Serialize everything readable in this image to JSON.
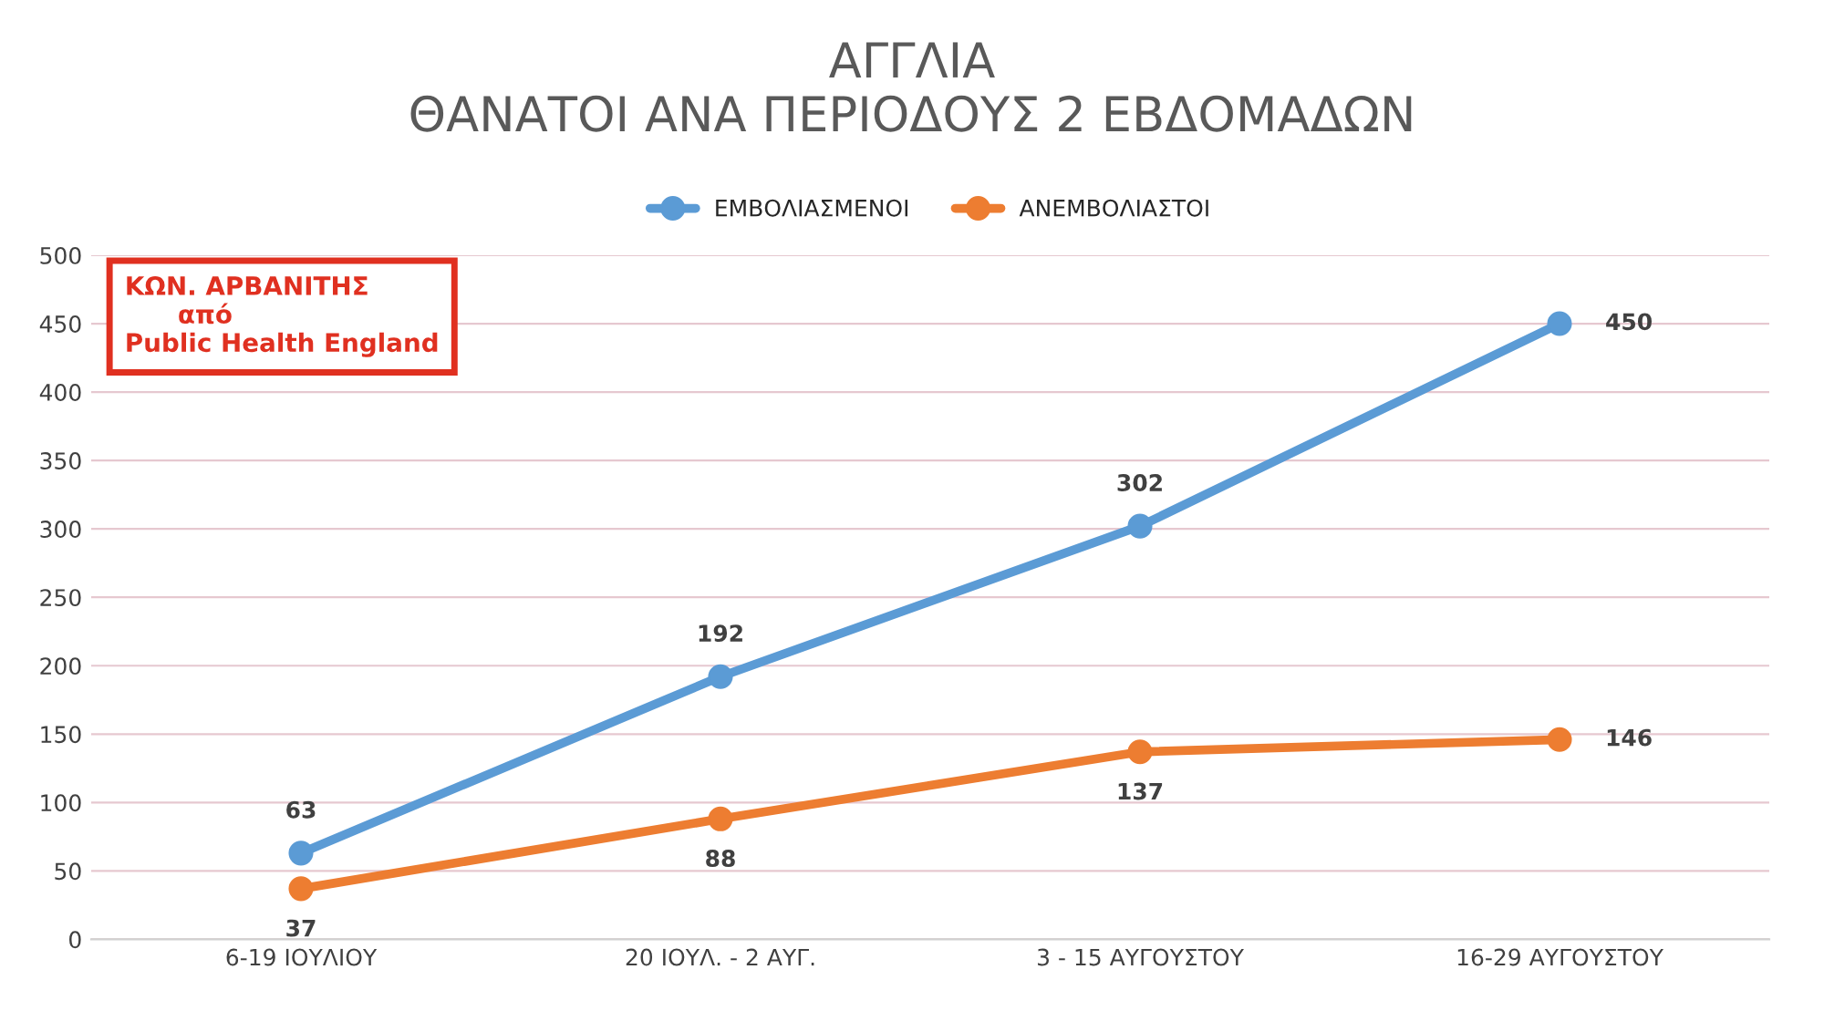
{
  "chart_data": {
    "type": "line",
    "title": "ΑΓΓΛΙΑ\nΘΑΝΑΤΟΙ ΑΝΑ ΠΕΡΙΟΔΟΥΣ 2 ΕΒΔΟΜΑΔΩΝ",
    "categories": [
      "6-19 ΙΟΥΛΙΟΥ",
      "20 ΙΟΥΛ. - 2 ΑΥΓ.",
      "3 - 15 ΑΥΓΟΥΣΤΟΥ",
      "16-29 ΑΥΓΟΥΣΤΟΥ"
    ],
    "series": [
      {
        "name": "ΕΜΒΟΛΙΑΣΜΕΝΟΙ",
        "color": "#5b9bd5",
        "values": [
          63,
          192,
          302,
          450
        ]
      },
      {
        "name": "ΑΝΕΜΒΟΛΙΑΣΤΟΙ",
        "color": "#ed7d31",
        "values": [
          37,
          88,
          137,
          146
        ]
      }
    ],
    "ylim": [
      0,
      500
    ],
    "yticks": [
      0,
      50,
      100,
      150,
      200,
      250,
      300,
      350,
      400,
      450,
      500
    ],
    "grid": "y",
    "legend": "top",
    "marker": "circle",
    "line_style": "solid",
    "data_labels": true,
    "annotations": [
      "ΚΩΝ. ΑΡΒΑΝΙΤΗΣ\n      από\nPublic Health England"
    ]
  }
}
